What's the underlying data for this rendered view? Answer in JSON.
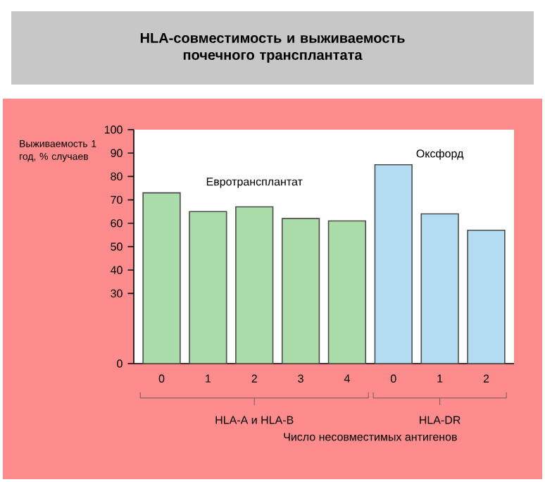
{
  "chart_data": {
    "type": "bar",
    "title": "HLA-совместимость и выживаемость почечного трансплантата",
    "ylabel": "Выживаемость 1 год, % случаев",
    "xlabel": "Число несовместимых антигенов",
    "categories": [
      "0",
      "1",
      "2",
      "3",
      "4",
      "0",
      "1",
      "2"
    ],
    "series": [
      {
        "name": "Евротрансплантат",
        "color": "#a9dca9",
        "values": [
          73,
          65,
          67,
          62,
          61,
          null,
          null,
          null
        ]
      },
      {
        "name": "Оксфорд",
        "color": "#b3dcf2",
        "values": [
          null,
          null,
          null,
          null,
          null,
          85,
          64,
          57
        ]
      }
    ],
    "annotations": [
      "HLA-A и HLA-B",
      "HLA-DR"
    ],
    "ylim": [
      0,
      100
    ],
    "yticks": [
      0,
      30,
      40,
      50,
      60,
      70,
      80,
      90,
      100
    ],
    "legend": false,
    "grid": false
  }
}
